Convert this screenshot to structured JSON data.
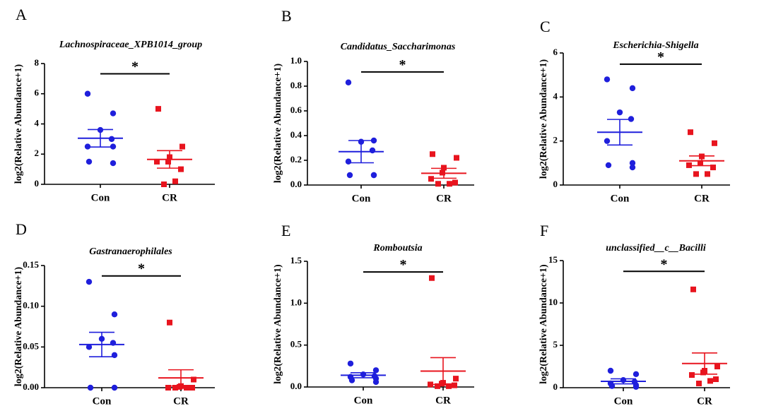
{
  "colors": {
    "Con": "#1f1fdc",
    "CR": "#e8141e"
  },
  "chart_data": [
    {
      "type": "scatter",
      "panel": "A",
      "title": "Lachnospiraceae_XPB1014_group",
      "ylabel": "log2(Relative Abundance+1)",
      "ylim": [
        0,
        8
      ],
      "yticks": [
        "0",
        "2",
        "4",
        "6",
        "8"
      ],
      "categories": [
        "Con",
        "CR"
      ],
      "points": {
        "Con": [
          6.0,
          4.7,
          3.6,
          3.0,
          2.5,
          2.5,
          1.5,
          1.4
        ],
        "CR": [
          5.0,
          2.5,
          1.8,
          1.5,
          1.5,
          1.0,
          0.2,
          0.0
        ]
      },
      "mean": {
        "Con": 3.05,
        "CR": 1.65
      },
      "sem": {
        "Con": 0.58,
        "CR": 0.58
      },
      "significance": "*"
    },
    {
      "type": "scatter",
      "panel": "B",
      "title": "Candidatus_Saccharimonas",
      "ylabel": "log2(Relative Abundance+1)",
      "ylim": [
        0,
        1.0
      ],
      "yticks": [
        "0.0",
        "0.2",
        "0.4",
        "0.6",
        "0.8",
        "1.0"
      ],
      "categories": [
        "Con",
        "CR"
      ],
      "points": {
        "Con": [
          0.83,
          0.36,
          0.35,
          0.28,
          0.19,
          0.08,
          0.08,
          0.08
        ],
        "CR": [
          0.25,
          0.22,
          0.14,
          0.1,
          0.05,
          0.02,
          0.01,
          0.01
        ]
      },
      "mean": {
        "Con": 0.27,
        "CR": 0.095
      },
      "sem": {
        "Con": 0.09,
        "CR": 0.04
      },
      "significance": "*"
    },
    {
      "type": "scatter",
      "panel": "C",
      "title": "Escherichia-Shigella",
      "ylabel": "log2(Relative Abundance+1)",
      "ylim": [
        0,
        6
      ],
      "yticks": [
        "0",
        "2",
        "4",
        "6"
      ],
      "categories": [
        "Con",
        "CR"
      ],
      "points": {
        "Con": [
          4.8,
          4.4,
          3.3,
          3.0,
          2.0,
          1.0,
          0.9,
          0.8
        ],
        "CR": [
          2.4,
          1.9,
          1.3,
          1.0,
          0.9,
          0.8,
          0.5,
          0.5
        ]
      },
      "mean": {
        "Con": 2.4,
        "CR": 1.1
      },
      "sem": {
        "Con": 0.58,
        "CR": 0.22
      },
      "significance": "*"
    },
    {
      "type": "scatter",
      "panel": "D",
      "title": "Gastranaerophilales",
      "ylabel": "log2(Relative Abundance+1)",
      "ylim": [
        0,
        0.15
      ],
      "yticks": [
        "0.00",
        "0.05",
        "0.10",
        "0.15"
      ],
      "categories": [
        "Con",
        "CR"
      ],
      "points": {
        "Con": [
          0.13,
          0.09,
          0.06,
          0.055,
          0.05,
          0.04,
          0.0,
          0.0
        ],
        "CR": [
          0.08,
          0.01,
          0.002,
          0.001,
          0.0,
          0.0,
          0.0,
          0.0
        ]
      },
      "mean": {
        "Con": 0.053,
        "CR": 0.012
      },
      "sem": {
        "Con": 0.015,
        "CR": 0.01
      },
      "significance": "*"
    },
    {
      "type": "scatter",
      "panel": "E",
      "title": "Romboutsia",
      "ylabel": "log2(Relative Abundance+1)",
      "ylim": [
        0,
        1.5
      ],
      "yticks": [
        "0.0",
        "0.5",
        "1.0",
        "1.5"
      ],
      "categories": [
        "Con",
        "CR"
      ],
      "points": {
        "Con": [
          0.28,
          0.2,
          0.15,
          0.13,
          0.12,
          0.1,
          0.08,
          0.06
        ],
        "CR": [
          1.3,
          0.1,
          0.05,
          0.04,
          0.03,
          0.02,
          0.01,
          0.01
        ]
      },
      "mean": {
        "Con": 0.14,
        "CR": 0.19
      },
      "sem": {
        "Con": 0.03,
        "CR": 0.16
      },
      "significance": "*"
    },
    {
      "type": "scatter",
      "panel": "F",
      "title": "unclassified__c__Bacilli",
      "ylabel": "log2(Relative Abundance+1)",
      "ylim": [
        0,
        15
      ],
      "yticks": [
        "0",
        "5",
        "10",
        "15"
      ],
      "categories": [
        "Con",
        "CR"
      ],
      "points": {
        "Con": [
          2.0,
          1.6,
          0.9,
          0.7,
          0.5,
          0.3,
          0.2,
          0.1
        ],
        "CR": [
          11.6,
          2.5,
          2.0,
          1.8,
          1.5,
          1.0,
          0.8,
          0.5
        ]
      },
      "mean": {
        "Con": 0.75,
        "CR": 2.85
      },
      "sem": {
        "Con": 0.3,
        "CR": 1.25
      },
      "significance": "*"
    }
  ]
}
